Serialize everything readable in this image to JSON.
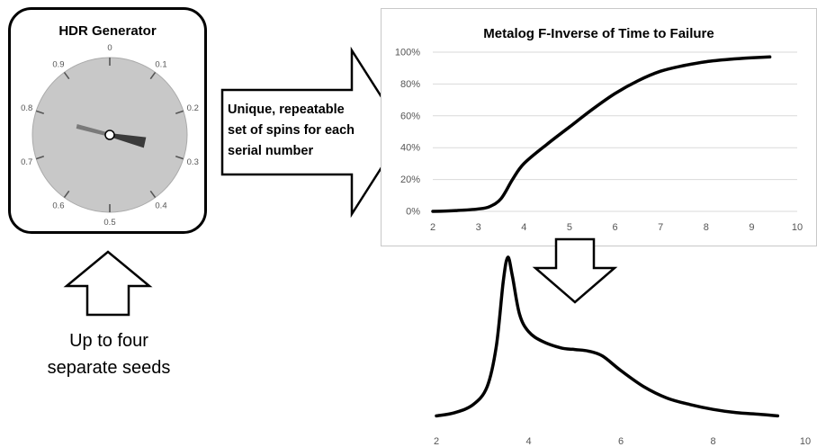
{
  "generator": {
    "title": "HDR Generator",
    "dial_labels": [
      "0",
      "0.1",
      "0.2",
      "0.3",
      "0.4",
      "0.5",
      "0.6",
      "0.7",
      "0.8",
      "0.9"
    ],
    "needle_value": 0.3
  },
  "arrow_text": {
    "line1": "Unique, repeatable",
    "line2": "set of spins for each",
    "line3": "serial number"
  },
  "seeds_text": {
    "line1": "Up to four",
    "line2": "separate seeds"
  },
  "colors": {
    "dial_face": "#c8c8c8",
    "gridline": "#d9d9d9",
    "curve": "#000000",
    "tick_label": "#555555"
  },
  "chart_data": [
    {
      "type": "line",
      "title": "Metalog F-Inverse of Time to Failure",
      "xlim": [
        2,
        10
      ],
      "ylim": [
        0,
        1
      ],
      "x_ticks": [
        "2",
        "3",
        "4",
        "5",
        "6",
        "7",
        "8",
        "9",
        "10"
      ],
      "y_ticks": [
        "0%",
        "20%",
        "40%",
        "60%",
        "80%",
        "100%"
      ],
      "grid": true,
      "series": [
        {
          "x": [
            2.0,
            2.5,
            3.0,
            3.25,
            3.5,
            3.75,
            4.0,
            4.5,
            5.0,
            5.5,
            6.0,
            6.5,
            7.0,
            7.5,
            8.0,
            8.5,
            9.0,
            9.4
          ],
          "y": [
            0.0,
            0.005,
            0.015,
            0.03,
            0.08,
            0.2,
            0.3,
            0.42,
            0.53,
            0.64,
            0.74,
            0.82,
            0.88,
            0.915,
            0.94,
            0.955,
            0.965,
            0.97
          ]
        }
      ]
    },
    {
      "type": "line",
      "xlim": [
        2,
        10
      ],
      "x_ticks": [
        "2",
        "4",
        "6",
        "8",
        "10"
      ],
      "grid": false,
      "series": [
        {
          "x": [
            2.0,
            2.4,
            2.8,
            3.1,
            3.3,
            3.45,
            3.55,
            3.65,
            3.8,
            4.0,
            4.3,
            4.7,
            5.0,
            5.3,
            5.6,
            6.0,
            6.5,
            7.0,
            7.5,
            8.0,
            8.5,
            9.0,
            9.4
          ],
          "y": [
            0.02,
            0.04,
            0.09,
            0.2,
            0.45,
            0.85,
            1.0,
            0.88,
            0.65,
            0.54,
            0.48,
            0.44,
            0.43,
            0.42,
            0.39,
            0.3,
            0.2,
            0.13,
            0.09,
            0.06,
            0.04,
            0.03,
            0.02
          ]
        }
      ]
    }
  ]
}
